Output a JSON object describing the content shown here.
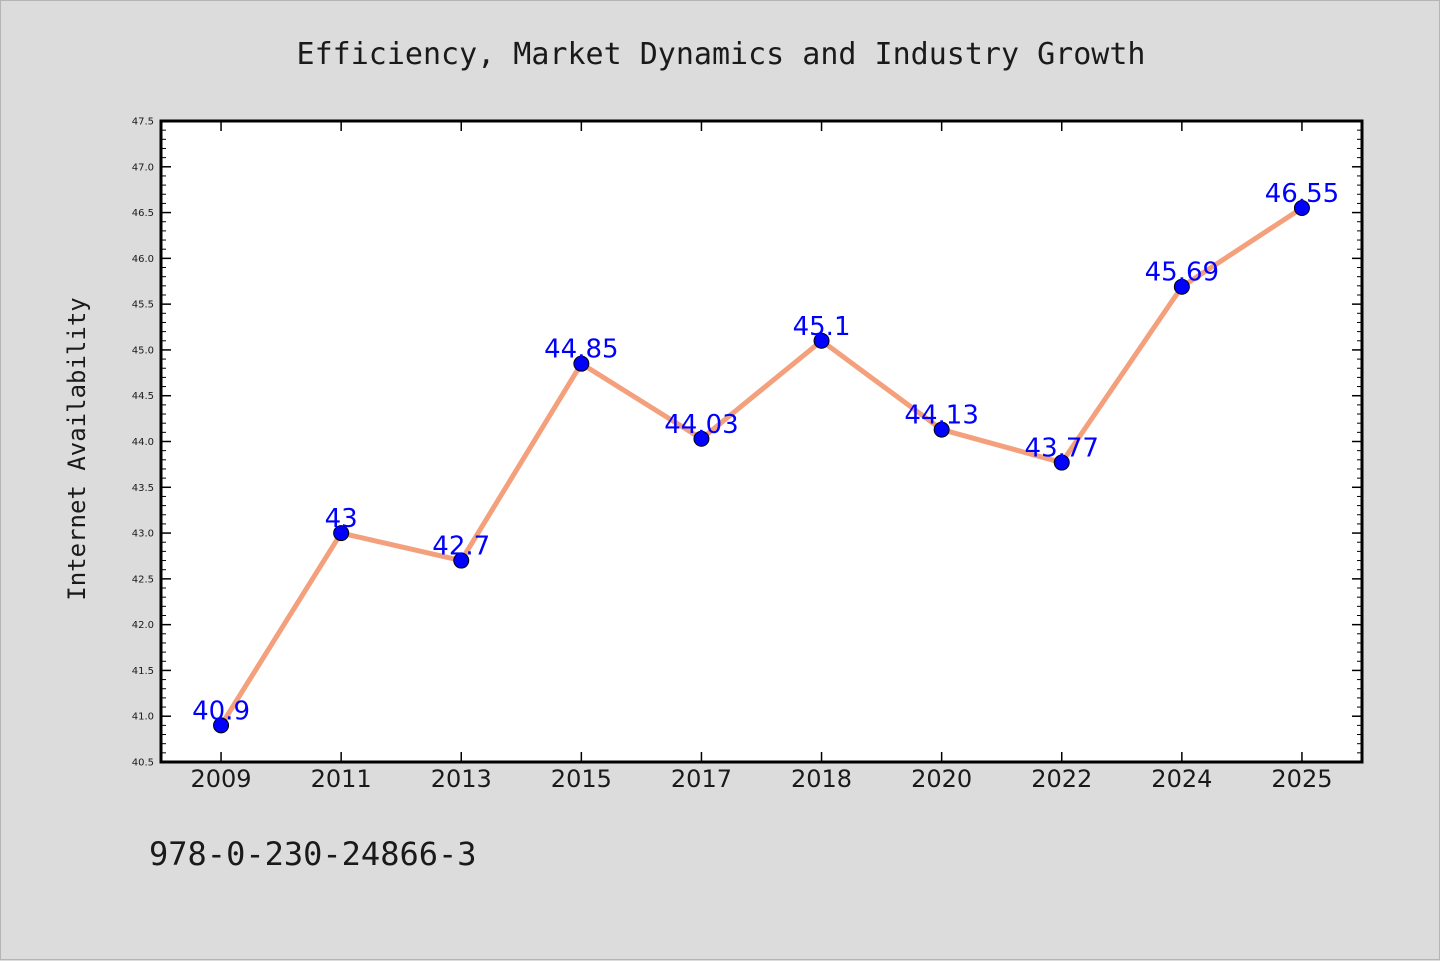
{
  "chart_data": {
    "type": "line",
    "title": "Efficiency, Market Dynamics and Industry Growth",
    "xlabel": "",
    "ylabel": "Internet Availability",
    "categories": [
      "2009",
      "2011",
      "2013",
      "2015",
      "2017",
      "2018",
      "2020",
      "2022",
      "2024",
      "2025"
    ],
    "series": [
      {
        "values": [
          40.9,
          43,
          42.7,
          44.85,
          44.03,
          45.1,
          44.13,
          43.77,
          45.69,
          46.55
        ],
        "data_labels": [
          "40.9",
          "43",
          "42.7",
          "44.85",
          "44.03",
          "45.1",
          "44.13",
          "43.77",
          "45.69",
          "46.55"
        ],
        "line_color": "#f4a07c",
        "marker_color": "#0000ff",
        "label_color": "#0000ff"
      }
    ],
    "ylim": [
      40.5,
      47.5
    ],
    "yticks": [
      "40.5",
      "41.0",
      "41.5",
      "42.0",
      "42.5",
      "43.0",
      "43.5",
      "44.0",
      "44.5",
      "45.0",
      "45.5",
      "46.0",
      "46.5",
      "47.0",
      "47.5"
    ],
    "grid": false,
    "legend": "none"
  },
  "footer": {
    "text": "978-0-230-24866-3"
  },
  "colors": {
    "background": "#dcdcdc",
    "plot_background": "#ffffff",
    "axis": "#000000"
  }
}
